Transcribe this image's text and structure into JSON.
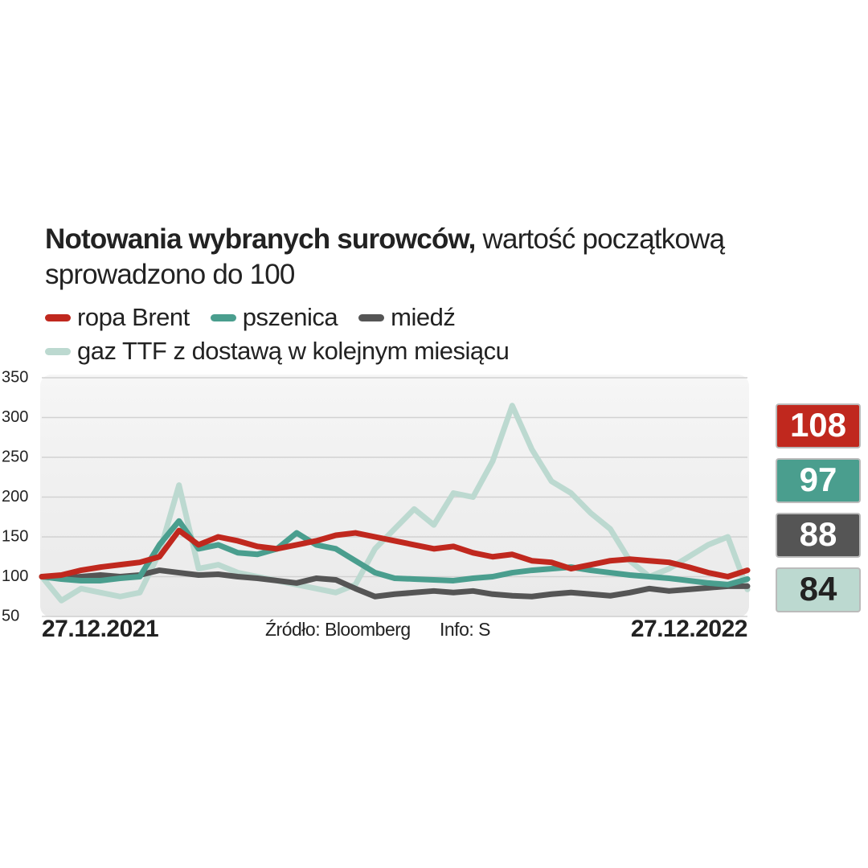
{
  "chart_data": {
    "type": "line",
    "title": "Notowania wybranych surowców,",
    "subtitle": "wartość początkową sprowadzono do 100",
    "source": "Źródło: Bloomberg",
    "credit": "Info: S",
    "categories": [
      "27.12.2021",
      null,
      null,
      null,
      null,
      null,
      null,
      null,
      null,
      null,
      null,
      null,
      null,
      null,
      null,
      null,
      null,
      null,
      null,
      null,
      null,
      null,
      null,
      null,
      null,
      null,
      null,
      null,
      null,
      null,
      null,
      null,
      null,
      null,
      null,
      null,
      "27.12.2022"
    ],
    "series": [
      {
        "name": "ropa Brent",
        "color": "#c0281e",
        "values": [
          100,
          102,
          108,
          112,
          115,
          118,
          125,
          158,
          140,
          150,
          145,
          138,
          135,
          140,
          145,
          152,
          155,
          150,
          145,
          140,
          135,
          138,
          130,
          125,
          128,
          120,
          118,
          110,
          115,
          120,
          122,
          120,
          118,
          112,
          105,
          100,
          108
        ]
      },
      {
        "name": "pszenica",
        "color": "#4a9e8e",
        "values": [
          100,
          97,
          95,
          95,
          98,
          100,
          140,
          170,
          135,
          140,
          130,
          128,
          135,
          155,
          140,
          135,
          120,
          105,
          98,
          97,
          96,
          95,
          98,
          100,
          105,
          108,
          110,
          112,
          108,
          105,
          102,
          100,
          98,
          95,
          92,
          90,
          97
        ]
      },
      {
        "name": "miedź",
        "color": "#555555",
        "values": [
          100,
          98,
          100,
          102,
          100,
          102,
          108,
          105,
          102,
          103,
          100,
          98,
          95,
          92,
          98,
          96,
          85,
          75,
          78,
          80,
          82,
          80,
          82,
          78,
          76,
          75,
          78,
          80,
          78,
          76,
          80,
          85,
          82,
          84,
          86,
          88,
          88
        ]
      },
      {
        "name": "gaz TTF z dostawą w kolejnym miesiącu",
        "color": "#bcd9d0",
        "values": [
          100,
          70,
          85,
          80,
          75,
          80,
          130,
          215,
          110,
          115,
          105,
          100,
          95,
          90,
          85,
          80,
          90,
          135,
          160,
          185,
          165,
          205,
          200,
          245,
          315,
          260,
          220,
          205,
          180,
          160,
          120,
          100,
          110,
          125,
          140,
          150,
          84
        ]
      }
    ],
    "ylim": [
      50,
      350
    ],
    "yticks": [
      50,
      100,
      150,
      200,
      250,
      300,
      350
    ],
    "grid": true
  }
}
